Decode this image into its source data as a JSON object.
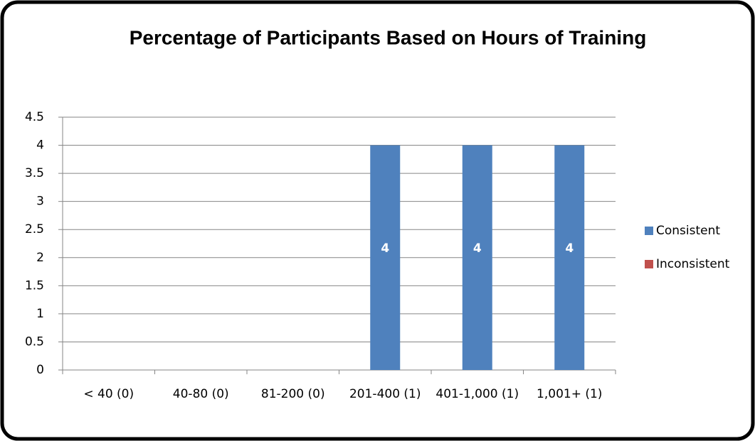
{
  "chart_data": {
    "type": "bar",
    "stacked": true,
    "title": "Percentage of Participants Based on Hours of Training",
    "categories": [
      "< 40 (0)",
      "40-80 (0)",
      "81-200 (0)",
      "201-400 (1)",
      "401-1,000 (1)",
      "1,001+ (1)"
    ],
    "series": [
      {
        "name": "Consistent",
        "color": "#4f81bd",
        "values": [
          null,
          null,
          null,
          4,
          4,
          4
        ]
      },
      {
        "name": "Inconsistent",
        "color": "#c0504d",
        "values": [
          null,
          null,
          null,
          null,
          null,
          null
        ]
      }
    ],
    "ylim": [
      0,
      4.5
    ],
    "yticks": [
      0,
      0.5,
      1,
      1.5,
      2,
      2.5,
      3,
      3.5,
      4,
      4.5
    ],
    "grid": true,
    "legend": "right"
  }
}
